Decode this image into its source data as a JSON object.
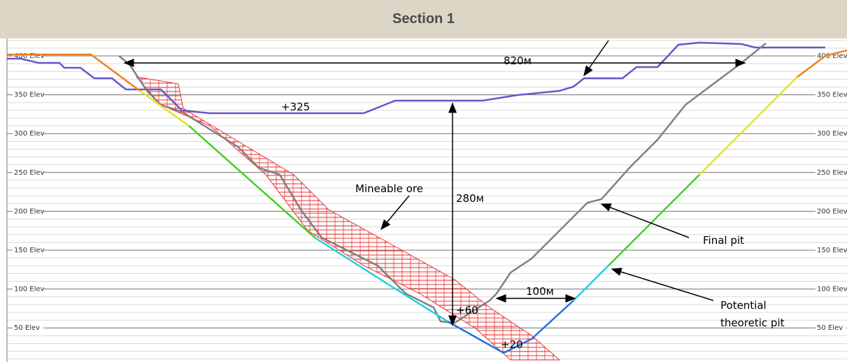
{
  "header": {
    "title": "Section 1"
  },
  "elevations": [
    "400 Elev",
    "350 Elev",
    "300 Elev",
    "250 Elev",
    "200 Elev",
    "150 Elev",
    "100 Elev",
    "50 Elev"
  ],
  "annotations": {
    "width_top": "820м",
    "level_top": "+325",
    "depth": "280м",
    "ore": "Mineable ore",
    "final_pit": "Final pit",
    "theoretic_pit_1": "Potential",
    "theoretic_pit_2": "theoretic pit",
    "width_bottom": "100м",
    "level_mid": "+60",
    "level_bottom": "+20"
  }
}
